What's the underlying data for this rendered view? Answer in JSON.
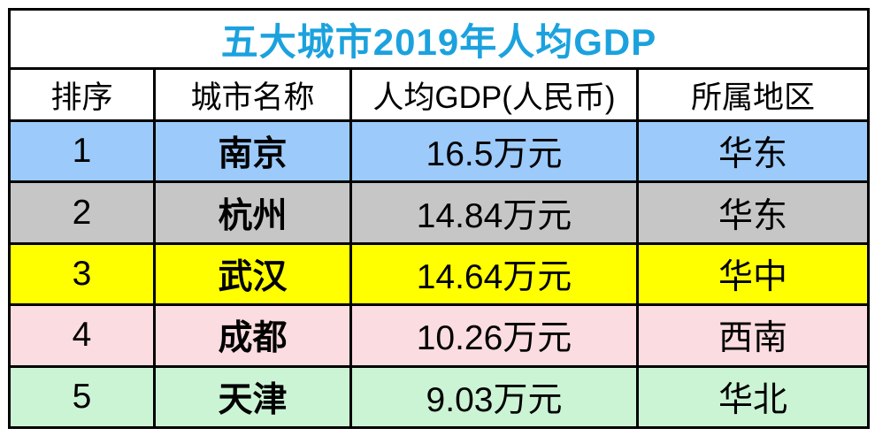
{
  "colors": {
    "title_text": "#1BA2DE",
    "border": "#000000",
    "header_bg": "#FFFFFF",
    "row_blue": "#9BCAFB",
    "row_gray": "#C6C6C6",
    "row_yellow": "#FFFF00",
    "row_pink": "#FBDCE0",
    "row_green": "#CBF4D4"
  },
  "chart_data": {
    "type": "table",
    "title": "五大城市2019年人均GDP",
    "columns": [
      "排序",
      "城市名称",
      "人均GDP(人民币)",
      "所属地区"
    ],
    "rows": [
      [
        "1",
        "南京",
        "16.5万元",
        "华东"
      ],
      [
        "2",
        "杭州",
        "14.84万元",
        "华东"
      ],
      [
        "3",
        "武汉",
        "14.64万元",
        "华中"
      ],
      [
        "4",
        "成都",
        "10.26万元",
        "西南"
      ],
      [
        "5",
        "天津",
        "9.03万元",
        "华北"
      ]
    ],
    "row_colors": [
      "#9BCAFB",
      "#C6C6C6",
      "#FFFF00",
      "#FBDCE0",
      "#CBF4D4"
    ],
    "gdp_values_wan_yuan": [
      16.5,
      14.84,
      14.64,
      10.26,
      9.03
    ]
  }
}
